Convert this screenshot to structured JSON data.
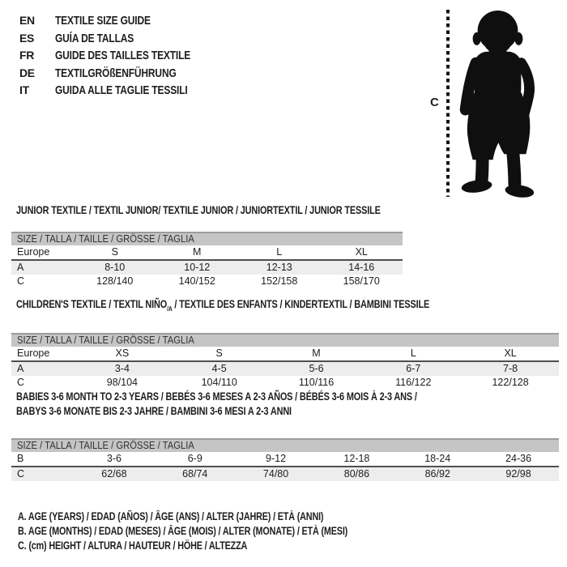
{
  "header": {
    "languages": [
      {
        "code": "EN",
        "label": "TEXTILE SIZE GUIDE"
      },
      {
        "code": "ES",
        "label": "GUÍA DE TALLAS"
      },
      {
        "code": "FR",
        "label": "GUIDE DES TAILLES TEXTILE"
      },
      {
        "code": "DE",
        "label": "TEXTILGRÖßENFÜHRUNG"
      },
      {
        "code": "IT",
        "label": "GUIDA ALLE TAGLIE TESSILI"
      }
    ]
  },
  "figure": {
    "icon": "toddler-silhouette-icon",
    "measure_label": "C"
  },
  "tables": [
    {
      "title_lines": [
        [
          {
            "text": "JUNIOR TEXTILE / TEXTIL JUNIOR/ TEXTILE JUNIOR / JUNIORTEXTIL / JUNIOR TESSILE",
            "sub": false
          }
        ]
      ],
      "size_header": "SIZE / TALLA / TAILLE / GRÖSSE / TAGLIA",
      "rows": [
        {
          "label": "Europe",
          "values": [
            "S",
            "M",
            "L",
            "XL"
          ]
        },
        {
          "label": "A",
          "values": [
            "8-10",
            "10-12",
            "12-13",
            "14-16"
          ]
        },
        {
          "label": "C",
          "values": [
            "128/140",
            "140/152",
            "152/158",
            "158/170"
          ]
        }
      ]
    },
    {
      "title_lines": [
        [
          {
            "text": "CHILDREN'S TEXTILE / TEXTIL NIÑO",
            "sub": false
          },
          {
            "text": "/A",
            "sub": true
          },
          {
            "text": " / TEXTILE DES ENFANTS / KINDERTEXTIL / BAMBINI TESSILE",
            "sub": false
          }
        ]
      ],
      "size_header": "SIZE / TALLA / TAILLE / GRÖSSE / TAGLIA",
      "rows": [
        {
          "label": "Europe",
          "values": [
            "XS",
            "S",
            "M",
            "L",
            "XL"
          ]
        },
        {
          "label": "A",
          "values": [
            "3-4",
            "4-5",
            "5-6",
            "6-7",
            "7-8"
          ]
        },
        {
          "label": "C",
          "values": [
            "98/104",
            "104/110",
            "110/116",
            "116/122",
            "122/128"
          ]
        }
      ]
    },
    {
      "title_lines": [
        [
          {
            "text": "BABIES 3-6 MONTH TO 2-3 YEARS / BEBÉS 3-6 MESES A 2-3 AÑOS / BÉBÉS 3-6 MOIS À 2-3 ANS /",
            "sub": false
          }
        ],
        [
          {
            "text": "BABYS 3-6 MONATE BIS 2-3 JAHRE / BAMBINI 3-6 MESI A 2-3 ANNI",
            "sub": false
          }
        ]
      ],
      "size_header": "SIZE / TALLA / TAILLE / GRÖSSE / TAGLIA",
      "rows": [
        {
          "label": "B",
          "values": [
            "3-6",
            "6-9",
            "9-12",
            "12-18",
            "18-24",
            "24-36"
          ]
        },
        {
          "label": "C",
          "values": [
            "62/68",
            "68/74",
            "74/80",
            "80/86",
            "86/92",
            "92/98"
          ]
        }
      ]
    }
  ],
  "footnotes": [
    "A. AGE (YEARS) / EDAD (AÑOS) / ÂGE (ANS) / ALTER (JAHRE) / ETÀ (ANNI)",
    "B. AGE (MONTHS) / EDAD (MESES) / ÂGE (MOIS) / ALTER (MONATE) / ETÀ (MESI)",
    "C. (cm) HEIGHT / ALTURA / HAUTEUR / HÖHE / ALTEZZA"
  ],
  "colors": {
    "text": "#1d1d1d",
    "size_bar_bg": "#c5c5c5",
    "size_bar_border": "#9c9c9c",
    "shaded_row_bg": "#ededed",
    "first_row_underline": "#4f4f4f",
    "silhouette": "#0f0f0f"
  }
}
